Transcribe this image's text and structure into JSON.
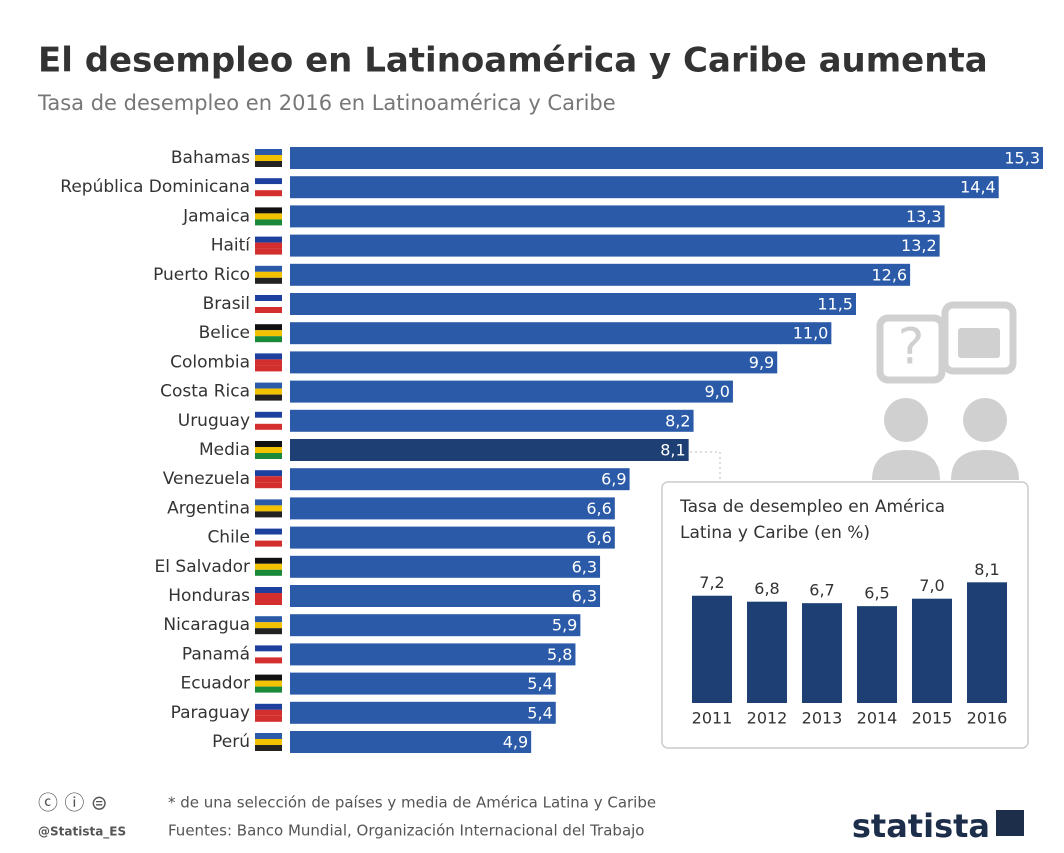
{
  "title": "El desempleo en Latinoamérica y Caribe aumenta",
  "subtitle": "Tasa de desempleo en 2016 en Latinoamérica y Caribe",
  "chart_data": [
    {
      "type": "hbar",
      "categories": [
        "Bahamas",
        "República Dominicana",
        "Jamaica",
        "Haití",
        "Puerto Rico",
        "Brasil",
        "Belice",
        "Colombia",
        "Costa Rica",
        "Uruguay",
        "Media",
        "Venezuela",
        "Argentina",
        "Chile",
        "El Salvador",
        "Honduras",
        "Nicaragua",
        "Panamá",
        "Ecuador",
        "Paraguay",
        "Perú"
      ],
      "values": [
        15.3,
        14.4,
        13.3,
        13.2,
        12.6,
        11.5,
        11.0,
        9.9,
        9.0,
        8.2,
        8.1,
        6.9,
        6.6,
        6.6,
        6.3,
        6.3,
        5.9,
        5.8,
        5.4,
        5.4,
        4.9
      ],
      "value_labels": [
        "15,3",
        "14,4",
        "13,3",
        "13,2",
        "12,6",
        "11,5",
        "11,0",
        "9,9",
        "9,0",
        "8,2",
        "8,1",
        "6,9",
        "6,6",
        "6,6",
        "6,3",
        "6,3",
        "5,9",
        "5,8",
        "5,4",
        "5,4",
        "4,9"
      ],
      "colors": [
        "#2b5ba8",
        "#2b5ba8",
        "#2b5ba8",
        "#2b5ba8",
        "#2b5ba8",
        "#2b5ba8",
        "#2b5ba8",
        "#2b5ba8",
        "#2b5ba8",
        "#2b5ba8",
        "#1d3f74",
        "#2b5ba8",
        "#2b5ba8",
        "#2b5ba8",
        "#2b5ba8",
        "#2b5ba8",
        "#2b5ba8",
        "#2b5ba8",
        "#2b5ba8",
        "#2b5ba8",
        "#2b5ba8"
      ]
    },
    {
      "type": "bar",
      "title": "Tasa de desempleo en América Latina y Caribe (en %)",
      "categories": [
        "2011",
        "2012",
        "2013",
        "2014",
        "2015",
        "2016"
      ],
      "values": [
        7.2,
        6.8,
        6.7,
        6.5,
        7.0,
        8.1
      ],
      "value_labels": [
        "7,2",
        "6,8",
        "6,7",
        "6,5",
        "7,0",
        "8,1"
      ],
      "color": "#1d3f74"
    }
  ],
  "footer": {
    "note": "* de una selección de países y media de América Latina y Caribe",
    "source": "Fuentes: Banco Mundial, Organización Internacional del Trabajo",
    "handle": "@Statista_ES",
    "brand": "statista"
  }
}
